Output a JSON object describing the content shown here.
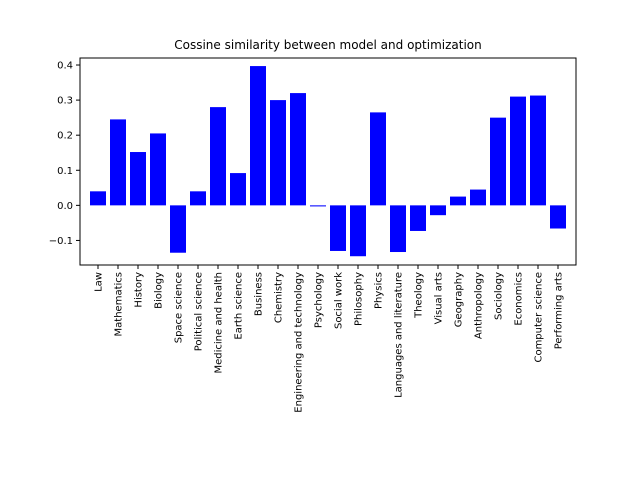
{
  "chart_data": {
    "type": "bar",
    "title": "Cossine similarity between model and optimization",
    "xlabel": "",
    "ylabel": "",
    "ylim": [
      -0.17,
      0.42
    ],
    "yticks": [
      -0.1,
      0.0,
      0.1,
      0.2,
      0.3,
      0.4
    ],
    "ytick_labels": [
      "−0.1",
      "0.0",
      "0.1",
      "0.2",
      "0.3",
      "0.4"
    ],
    "grid": false,
    "bar_color": "#0000ff",
    "categories": [
      "Law",
      "Mathematics",
      "History",
      "Biology",
      "Space science",
      "Political science",
      "Medicine and health",
      "Earth science",
      "Business",
      "Chemistry",
      "Engineering and technology",
      "Psychology",
      "Social work",
      "Philosophy",
      "Physics",
      "Languages and literature",
      "Theology",
      "Visual arts",
      "Geography",
      "Anthropology",
      "Sociology",
      "Economics",
      "Computer science",
      "Performing arts"
    ],
    "values": [
      0.04,
      0.245,
      0.152,
      0.205,
      -0.135,
      0.04,
      0.28,
      0.092,
      0.397,
      0.3,
      0.32,
      -0.003,
      -0.13,
      -0.145,
      0.265,
      -0.133,
      -0.073,
      -0.028,
      0.025,
      0.045,
      0.25,
      0.31,
      0.313,
      -0.066
    ]
  }
}
